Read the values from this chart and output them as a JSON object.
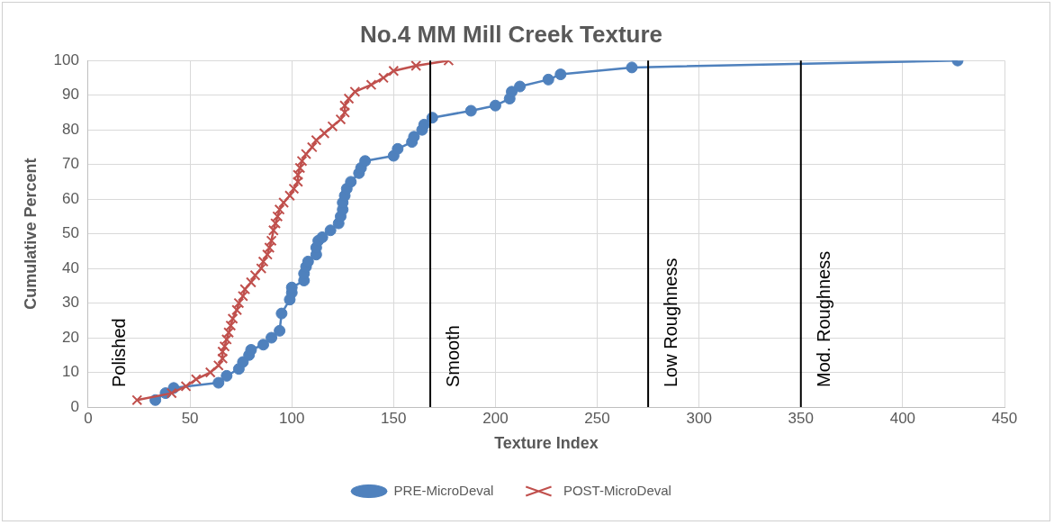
{
  "chart_data": {
    "type": "line",
    "title": "No.4 MM Mill Creek Texture",
    "xlabel": "Texture Index",
    "ylabel": "Cumulative Percent",
    "xlim": [
      0,
      450
    ],
    "xticks": [
      0,
      50,
      100,
      150,
      200,
      250,
      300,
      350,
      400,
      450
    ],
    "ylim": [
      0,
      100
    ],
    "yticks": [
      0,
      10,
      20,
      30,
      40,
      50,
      60,
      70,
      80,
      90,
      100
    ],
    "grid": true,
    "legend": "bottom",
    "series": [
      {
        "name": "PRE-MicroDeval",
        "color": "#4f81bd",
        "marker": "circle",
        "x": [
          33,
          38,
          42,
          64,
          68,
          74,
          76,
          79,
          80,
          86,
          90,
          94,
          95,
          99,
          100,
          100,
          106,
          106,
          107,
          108,
          112,
          112,
          113,
          115,
          119,
          123,
          124,
          125,
          125,
          126,
          127,
          129,
          133,
          134,
          136,
          150,
          152,
          159,
          160,
          164,
          165,
          169,
          188,
          200,
          207,
          208,
          212,
          226,
          232,
          267,
          427
        ],
        "values": [
          2,
          4,
          5.5,
          7,
          9,
          11,
          13,
          15,
          16.5,
          18,
          20,
          22,
          27,
          31,
          33,
          34.5,
          36.5,
          38.5,
          40.5,
          42,
          44,
          46,
          48,
          49,
          51,
          53,
          55,
          57,
          59,
          61,
          63,
          65,
          67.5,
          69,
          71,
          72.5,
          74.5,
          76.5,
          78,
          80,
          81.5,
          83.5,
          85.5,
          87,
          89,
          91,
          92.5,
          94.5,
          96,
          98,
          100
        ]
      },
      {
        "name": "POST-MicroDeval",
        "color": "#c0504d",
        "marker": "cross",
        "x": [
          24,
          41,
          48,
          53,
          60,
          64,
          66,
          66,
          67,
          68,
          69,
          70,
          71,
          73,
          74,
          76,
          77,
          80,
          82,
          85,
          86,
          88,
          89,
          90,
          91,
          92,
          93,
          94,
          96,
          99,
          101,
          103,
          103,
          104,
          105,
          107,
          110,
          112,
          116,
          120,
          124,
          126,
          126,
          128,
          131,
          139,
          145,
          150,
          161,
          177
        ],
        "values": [
          2,
          4,
          6,
          8,
          10,
          12,
          14,
          16,
          17.5,
          19.5,
          21.5,
          23.5,
          25.5,
          28,
          30,
          32,
          34,
          36,
          38,
          40,
          42,
          44,
          46,
          48,
          51,
          53,
          55,
          57,
          59,
          61,
          63,
          65,
          67,
          69,
          71,
          73,
          75,
          77,
          79,
          81,
          83,
          85,
          87,
          89,
          91,
          93,
          95,
          97,
          98.5,
          100
        ]
      }
    ],
    "ref_lines": [
      {
        "axis": "x",
        "value": 168,
        "label": "Smooth",
        "color": "#000000"
      },
      {
        "axis": "x",
        "value": 275,
        "label": "Low Roughness",
        "color": "#000000"
      },
      {
        "axis": "x",
        "value": 350,
        "label": "Mod. Roughness",
        "color": "#000000"
      }
    ],
    "annotations": [
      "Polished"
    ]
  }
}
